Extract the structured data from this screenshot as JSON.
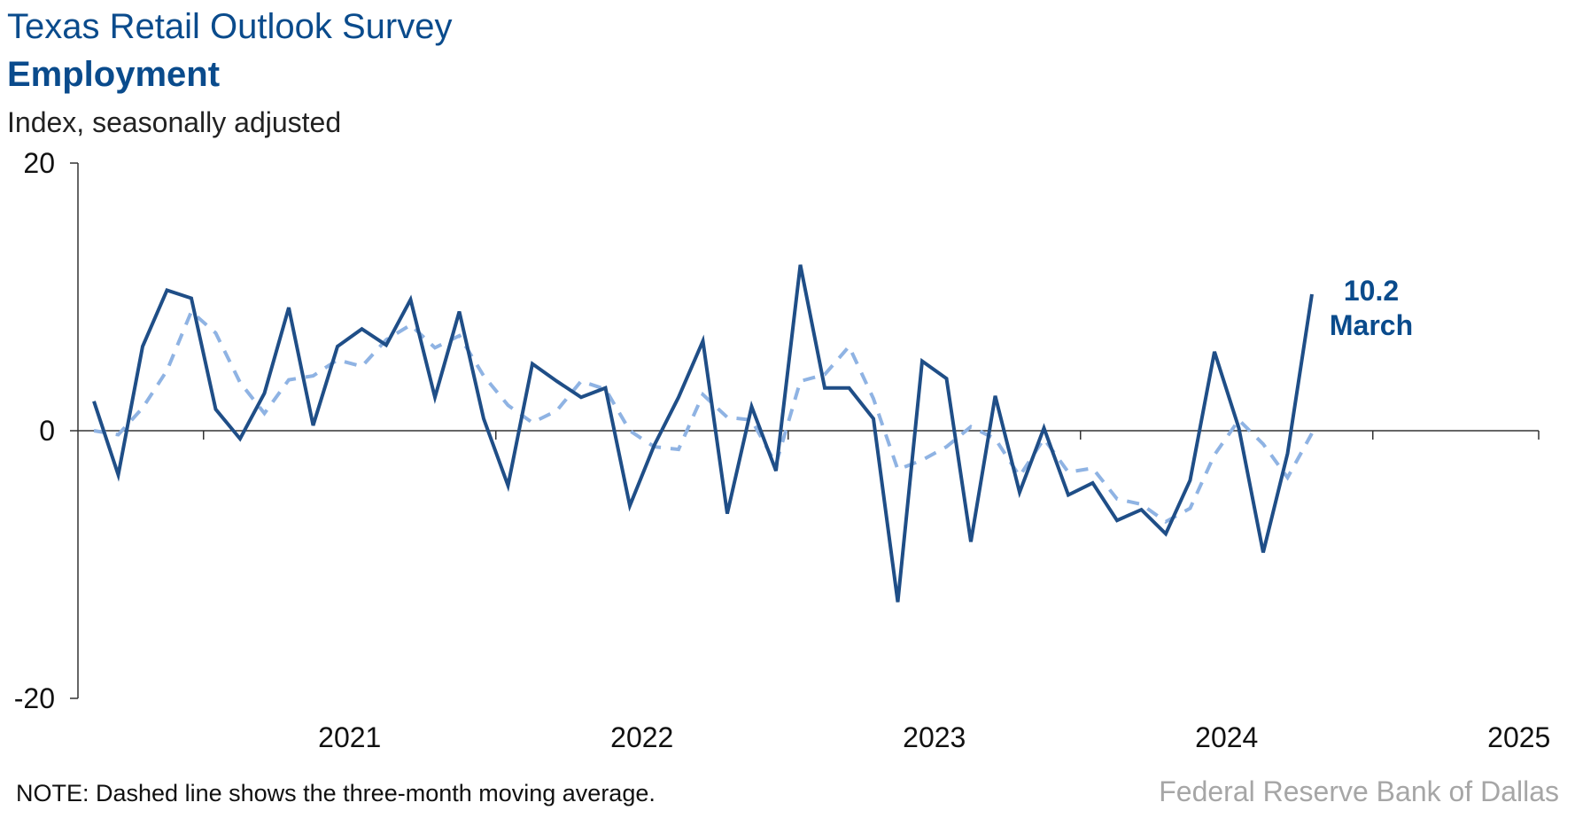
{
  "header": {
    "title": "Texas Retail Outlook Survey",
    "subtitle": "Employment",
    "unit": "Index, seasonally adjusted"
  },
  "footer": {
    "note": "NOTE: Dashed line shows the three-month moving average.",
    "source": "Federal Reserve Bank of Dallas"
  },
  "annotation": {
    "value": "10.2",
    "label": "March"
  },
  "colors": {
    "series": "#1f4e87",
    "moving_average": "#8fb3e3",
    "axis": "#333333",
    "title": "#0a4b8c"
  },
  "chart_data": {
    "type": "line",
    "title": "Texas Retail Outlook Survey",
    "subtitle": "Employment",
    "ylabel": "Index, seasonally adjusted",
    "ylim": [
      -20,
      20
    ],
    "yticks": [
      -20,
      0,
      20
    ],
    "x_ticks": [
      "2021",
      "2022",
      "2023",
      "2024",
      "2025"
    ],
    "x_start": "2020-08",
    "grid": false,
    "series": [
      {
        "values": [
          2.2,
          -3.3,
          6.3,
          10.5,
          9.9,
          1.6,
          -0.6,
          2.8,
          9.2,
          0.4,
          6.3,
          7.6,
          6.4,
          9.8,
          2.5,
          8.9,
          0.9,
          -4.1,
          5.0,
          3.7,
          2.5,
          3.2,
          -5.6,
          -1.1,
          2.5,
          6.7,
          -6.2,
          1.8,
          -3.0,
          12.4,
          3.2,
          3.2,
          0.9,
          -12.8,
          5.2,
          3.9,
          -8.3,
          2.6,
          -4.6,
          0.2,
          -4.8,
          -3.9,
          -6.7,
          -5.9,
          -7.7,
          -3.7,
          5.9,
          0.2,
          -9.1,
          -1.7,
          10.2
        ]
      },
      {
        "values": [
          0.0,
          -0.3,
          1.7,
          4.5,
          8.9,
          7.3,
          3.6,
          1.3,
          3.8,
          4.1,
          5.3,
          4.8,
          6.8,
          7.9,
          6.2,
          7.1,
          4.1,
          1.9,
          0.6,
          1.5,
          3.7,
          3.1,
          0.0,
          -1.2,
          -1.4,
          2.7,
          1.0,
          0.8,
          -2.5,
          3.7,
          4.2,
          6.3,
          2.4,
          -2.9,
          -2.2,
          -1.2,
          0.3,
          -0.6,
          -3.4,
          -0.6,
          -3.1,
          -2.8,
          -5.1,
          -5.5,
          -6.8,
          -5.8,
          -1.8,
          0.8,
          -1.0,
          -3.5,
          -0.2
        ]
      }
    ]
  }
}
